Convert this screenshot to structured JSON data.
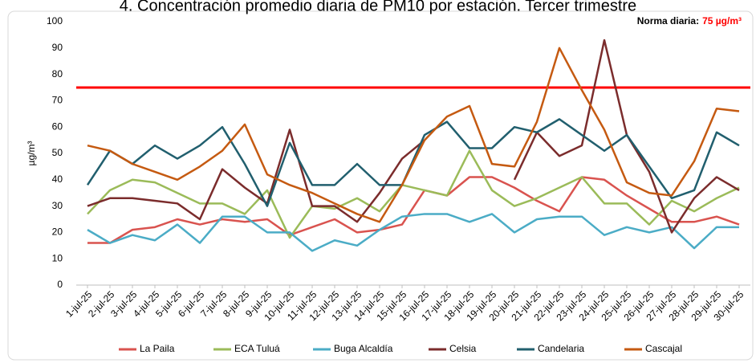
{
  "chart_data": {
    "type": "line",
    "title": "4. Concentración promedio diaria de PM10 por estación. Tercer trimestre",
    "ylabel": "µg/m³",
    "annotation": {
      "text": "Norma diaria:",
      "value": 75,
      "value_label": "75 µg/m³",
      "color": "#ff0000"
    },
    "categories": [
      "1-jul-25",
      "2-jul-25",
      "3-jul-25",
      "4-jul-25",
      "5-jul-25",
      "6-jul-25",
      "7-jul-25",
      "8-jul-25",
      "9-jul-25",
      "10-jul-25",
      "11-jul-25",
      "12-jul-25",
      "13-jul-25",
      "14-jul-25",
      "15-jul-25",
      "16-jul-25",
      "17-jul-25",
      "18-jul-25",
      "19-jul-25",
      "20-jul-25",
      "21-jul-25",
      "22-jul-25",
      "23-jul-25",
      "24-jul-25",
      "25-jul-25",
      "26-jul-25",
      "27-jul-25",
      "28-jul-25",
      "29-jul-25",
      "30-jul-25"
    ],
    "ylim": [
      0,
      100
    ],
    "yticks": [
      0,
      10,
      20,
      30,
      40,
      50,
      60,
      70,
      80,
      90,
      100
    ],
    "grid": false,
    "legend": "bottom",
    "series": [
      {
        "name": "La Paila",
        "color": "#d9534f",
        "values": [
          16,
          16,
          21,
          22,
          25,
          23,
          25,
          24,
          25,
          19,
          22,
          25,
          20,
          21,
          23,
          36,
          34,
          41,
          41,
          37,
          32,
          28,
          41,
          40,
          34,
          29,
          24,
          24,
          26,
          23
        ]
      },
      {
        "name": "ECA Tuluá",
        "color": "#9bbb59",
        "values": [
          27,
          36,
          40,
          39,
          35,
          31,
          31,
          27,
          36,
          18,
          30,
          29,
          33,
          28,
          38,
          36,
          34,
          51,
          36,
          30,
          33,
          37,
          41,
          31,
          31,
          23,
          32,
          28,
          33,
          37
        ]
      },
      {
        "name": "Buga Alcaldía",
        "color": "#4bacc6",
        "values": [
          21,
          16,
          19,
          17,
          23,
          16,
          26,
          26,
          20,
          20,
          13,
          17,
          15,
          21,
          26,
          27,
          27,
          24,
          27,
          20,
          25,
          26,
          26,
          19,
          22,
          20,
          22,
          14,
          22,
          22
        ]
      },
      {
        "name": "Celsia",
        "color": "#7b2c2c",
        "values": [
          30,
          33,
          33,
          32,
          31,
          25,
          44,
          37,
          31,
          59,
          30,
          30,
          24,
          35,
          48,
          55,
          null,
          null,
          null,
          40,
          58,
          49,
          53,
          93,
          57,
          43,
          20,
          33,
          41,
          36
        ]
      },
      {
        "name": "Candelaria",
        "color": "#215f6e",
        "values": [
          38,
          51,
          46,
          53,
          48,
          53,
          60,
          46,
          30,
          54,
          38,
          38,
          46,
          38,
          38,
          57,
          62,
          52,
          52,
          60,
          58,
          63,
          57,
          51,
          57,
          45,
          33,
          36,
          58,
          53
        ]
      },
      {
        "name": "Cascajal",
        "color": "#c55a11",
        "values": [
          53,
          51,
          46,
          43,
          40,
          45,
          51,
          61,
          42,
          38,
          35,
          31,
          27,
          24,
          38,
          55,
          64,
          68,
          46,
          45,
          62,
          90,
          74,
          59,
          39,
          35,
          34,
          47,
          67,
          66
        ]
      }
    ]
  }
}
